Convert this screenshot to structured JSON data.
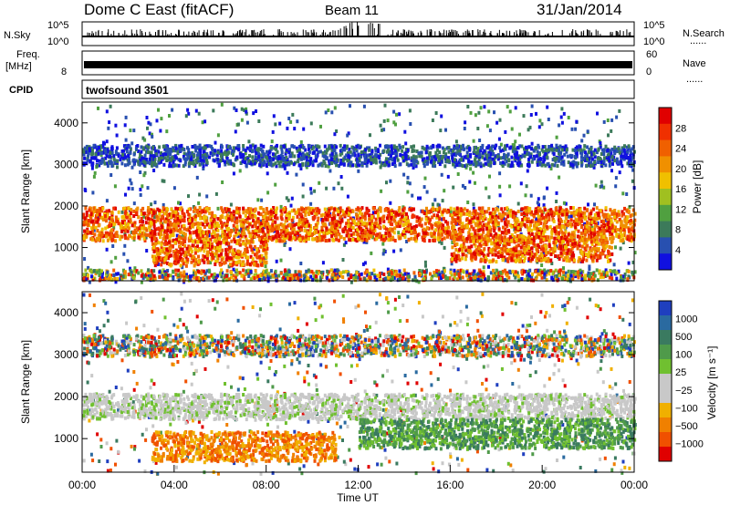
{
  "header": {
    "station": "Dome C East (fitACF)",
    "beam": "Beam 11",
    "date": "31/Jan/2014"
  },
  "strips": {
    "nsky_label": "N.Sky",
    "nsky_ticks": [
      "10^5",
      "10^0"
    ],
    "nsearch_label": "N.Search",
    "nsearch_ticks": [
      "10^5",
      "10^0"
    ],
    "freq_label_1": "Freq.",
    "freq_label_2": "[MHz]",
    "freq_tick": "8",
    "nave_label": "Nave",
    "nave_ticks": [
      "60",
      "0"
    ],
    "cpid_label": "CPID",
    "cpid_value": "twofsound 3501",
    "dots": "......"
  },
  "colors": {
    "power_scale": [
      "#1010e0",
      "#2850b0",
      "#3c7a5a",
      "#50a040",
      "#a0c020",
      "#f0c000",
      "#f09000",
      "#f06000",
      "#f03000",
      "#e00000"
    ],
    "velocity_scale": [
      "#1f3fbf",
      "#2a6aa0",
      "#3a7a60",
      "#4f9a4a",
      "#70c030",
      "#c8c8c8",
      "#c8c8c8",
      "#f0b000",
      "#f08000",
      "#f05000",
      "#e00000"
    ]
  },
  "chart_data": [
    {
      "type": "heatmap",
      "name": "power-panel",
      "xlabel": "",
      "ylabel": "Slant Range [km]",
      "xlim": [
        "00:00",
        "24:00"
      ],
      "ylim": [
        200,
        4500
      ],
      "yticks": [
        "1000",
        "2000",
        "3000",
        "4000"
      ],
      "colorbar_label": "Power [dB]",
      "colorbar_ticks": [
        "28",
        "24",
        "20",
        "16",
        "12",
        "8",
        "4"
      ],
      "bands": [
        {
          "range_km": [
            1200,
            2000
          ],
          "hours": [
            0,
            24
          ],
          "level": "high"
        },
        {
          "range_km": [
            600,
            1200
          ],
          "hours": [
            3,
            8
          ],
          "level": "high"
        },
        {
          "range_km": [
            700,
            1300
          ],
          "hours": [
            16,
            23
          ],
          "level": "high"
        },
        {
          "range_km": [
            3000,
            3500
          ],
          "hours": [
            0,
            24
          ],
          "level": "low"
        },
        {
          "range_km": [
            250,
            500
          ],
          "hours": [
            0,
            24
          ],
          "level": "mixed"
        }
      ]
    },
    {
      "type": "heatmap",
      "name": "velocity-panel",
      "xlabel": "Time UT",
      "ylabel": "Slant Range [km]",
      "xticks": [
        "00:00",
        "04:00",
        "08:00",
        "12:00",
        "16:00",
        "20:00",
        "00:00"
      ],
      "ylim": [
        200,
        4500
      ],
      "yticks": [
        "1000",
        "2000",
        "3000",
        "4000"
      ],
      "colorbar_label": "Velocity [m s⁻¹]",
      "colorbar_ticks": [
        "1000",
        "500",
        "100",
        "25",
        "−25",
        "−100",
        "−500",
        "−1000"
      ],
      "bands": [
        {
          "range_km": [
            1500,
            2100
          ],
          "hours": [
            0,
            24
          ],
          "level": "ground-scatter"
        },
        {
          "range_km": [
            500,
            1200
          ],
          "hours": [
            3,
            11
          ],
          "level": "negative"
        },
        {
          "range_km": [
            800,
            1500
          ],
          "hours": [
            12,
            24
          ],
          "level": "positive"
        },
        {
          "range_km": [
            3000,
            3500
          ],
          "hours": [
            0,
            24
          ],
          "level": "mixed"
        }
      ]
    }
  ]
}
